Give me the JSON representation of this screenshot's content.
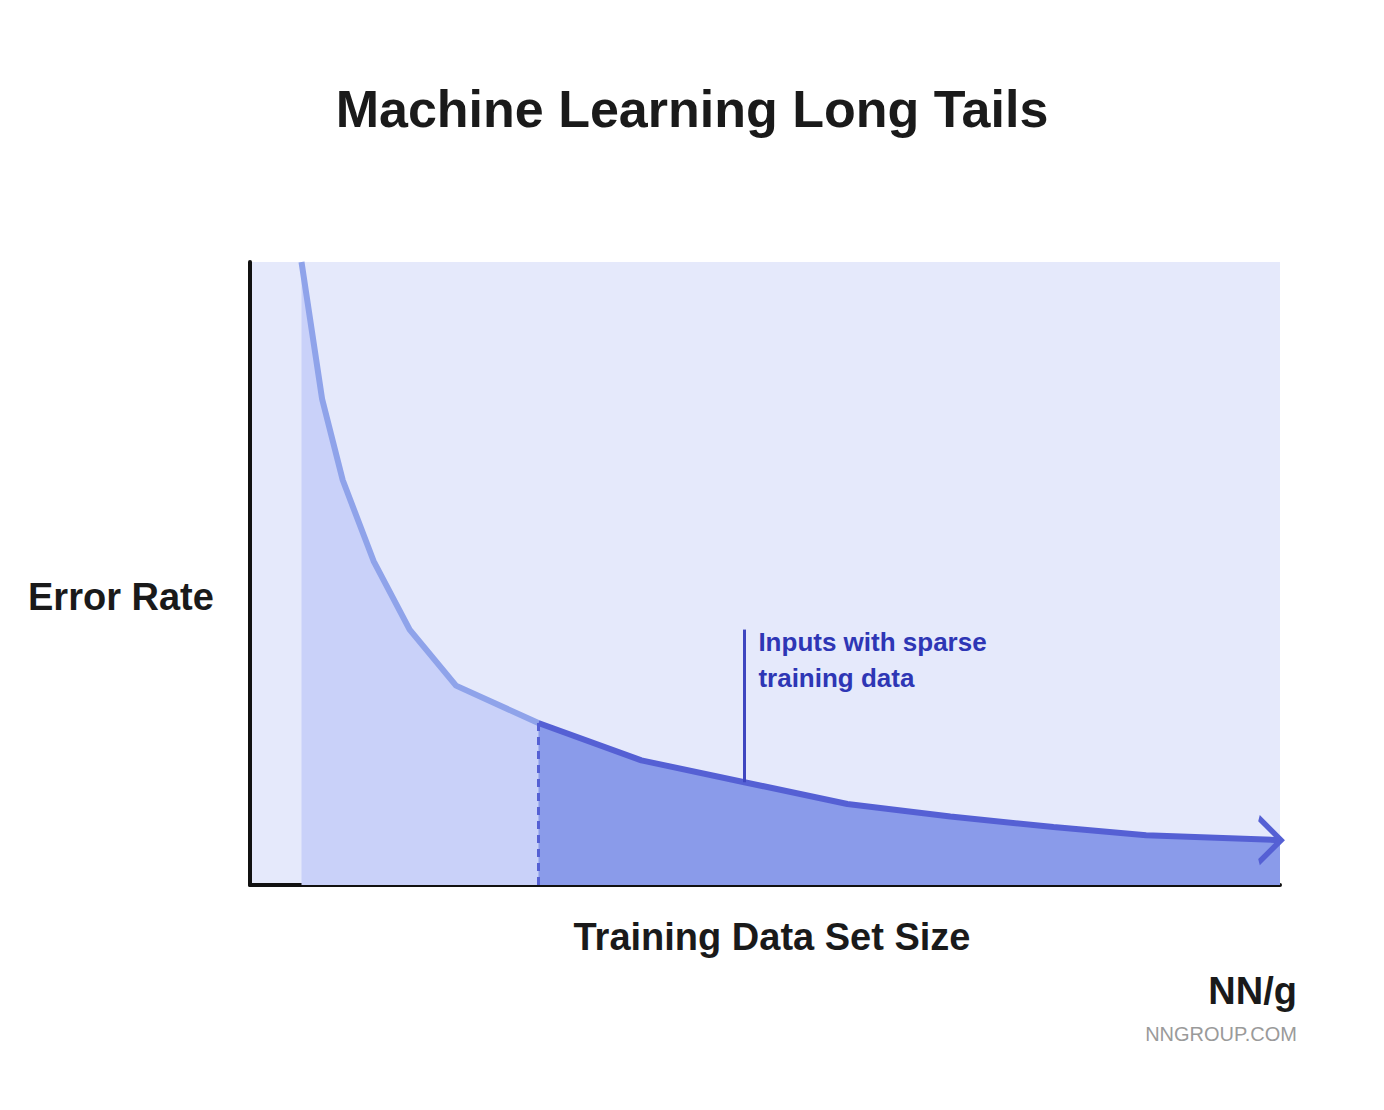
{
  "chart_data": {
    "type": "line",
    "title": "Machine Learning Long Tails",
    "x_label": "Training Data Set Size",
    "y_label": "Error Rate",
    "x": [
      5,
      7,
      9,
      12,
      15.5,
      20,
      28,
      38,
      48,
      58,
      68,
      78,
      87,
      100
    ],
    "values": [
      100,
      78,
      65,
      52,
      41,
      32,
      26,
      20,
      16.5,
      13,
      11,
      9.3,
      8,
      7.2
    ],
    "tail_start": 28,
    "annotation": {
      "text": "Inputs with sparse training data",
      "x": 48,
      "y": 41
    },
    "color": "#5560d4",
    "xlim": [
      0,
      100
    ],
    "ylim": [
      0,
      100
    ],
    "xticks": [],
    "yticks": [],
    "tick_labels": false,
    "grid": false,
    "logo": "NN/g",
    "source": "NNGROUP.COM"
  }
}
